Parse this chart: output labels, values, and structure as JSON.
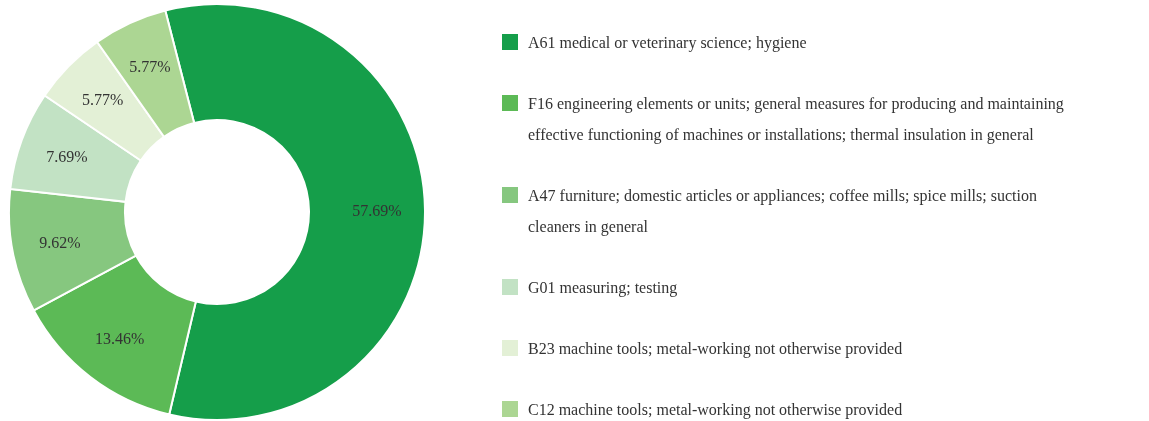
{
  "chart_data": {
    "type": "donut",
    "categories": [
      "A61 medical or veterinary science; hygiene",
      "F16 engineering elements or units; general measures for producing and maintaining effective functioning of machines or installations; thermal insulation in general",
      "A47 furniture; domestic articles or appliances; coffee mills; spice mills; suction cleaners in general",
      "G01 measuring; testing",
      "B23 machine tools; metal-working not otherwise provided",
      "C12 machine tools; metal-working not otherwise provided"
    ],
    "values": [
      57.69,
      13.46,
      9.62,
      7.69,
      5.77,
      5.77
    ],
    "colors": [
      "#159e4a",
      "#5cba56",
      "#86c77f",
      "#c2e2c4",
      "#e3f0d6",
      "#acd693"
    ],
    "value_labels": [
      "57.69%",
      "13.46%",
      "9.62%",
      "7.69%",
      "5.77%",
      "5.77%"
    ],
    "legend": "right"
  }
}
